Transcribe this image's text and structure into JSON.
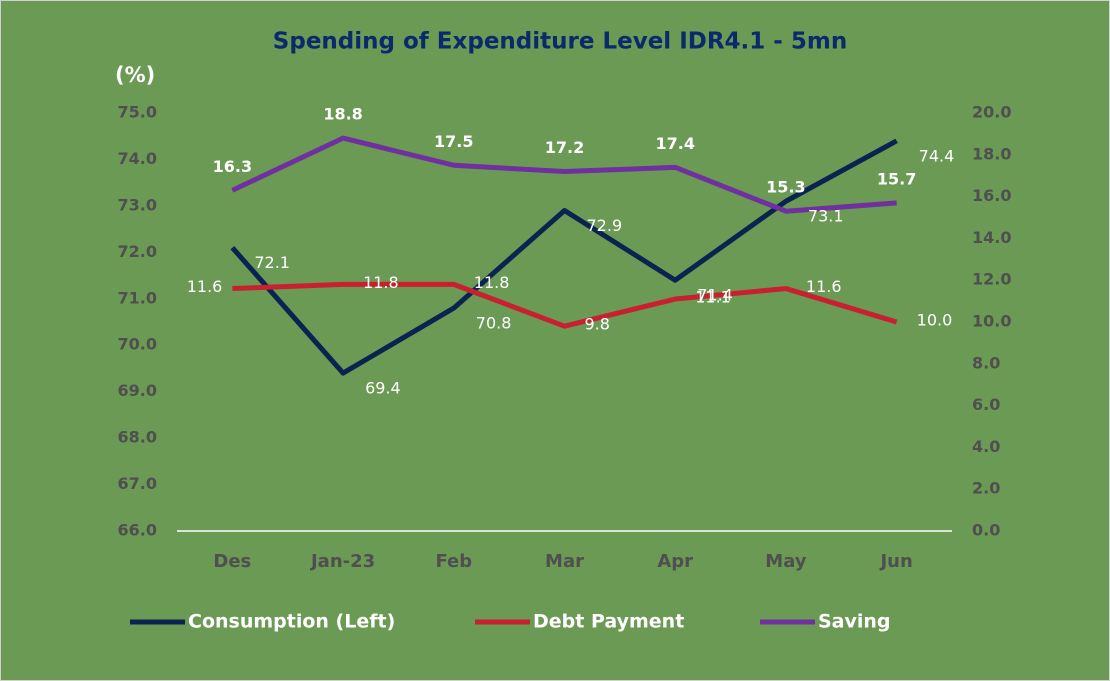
{
  "chart_data": {
    "type": "line",
    "title": "Spending of Expenditure Level IDR4.1 - 5mn",
    "y_label": "(%)",
    "categories": [
      "Des",
      "Jan-23",
      "Feb",
      "Mar",
      "Apr",
      "May",
      "Jun"
    ],
    "series": [
      {
        "name": "Consumption (Left)",
        "color": "#0b2350",
        "values": [
          72.1,
          69.4,
          70.8,
          72.9,
          71.4,
          73.1,
          74.4
        ],
        "value_labels": [
          "72.1",
          "69.4",
          "70.8",
          "72.9",
          "71.4",
          "73.1",
          "74.4"
        ]
      },
      {
        "name": "Debt Payment",
        "color": "#c8202f",
        "axis": "y2",
        "values": [
          11.6,
          11.8,
          11.8,
          9.8,
          11.1,
          11.6,
          10.0
        ],
        "value_labels": [
          "11.6",
          "11.8",
          "11.8",
          "9.8",
          "11.1",
          "11.6",
          "10.0"
        ]
      },
      {
        "name": "Saving",
        "color": "#7030a0",
        "axis": "y2",
        "values": [
          16.3,
          18.8,
          17.5,
          17.2,
          17.4,
          15.3,
          15.7
        ],
        "value_labels": [
          "16.3",
          "18.8",
          "17.5",
          "17.2",
          "17.4",
          "15.3",
          "15.7"
        ]
      }
    ],
    "ylim": [
      66,
      75
    ],
    "yticks": [
      {
        "value": 66,
        "label": "66.0"
      },
      {
        "value": 67,
        "label": "67.0"
      },
      {
        "value": 68,
        "label": "68.0"
      },
      {
        "value": 69,
        "label": "69.0"
      },
      {
        "value": 70,
        "label": "70.0"
      },
      {
        "value": 71,
        "label": "71.0"
      },
      {
        "value": 72,
        "label": "72.0"
      },
      {
        "value": 73,
        "label": "73.0"
      },
      {
        "value": 74,
        "label": "74.0"
      },
      {
        "value": 75,
        "label": "75.0"
      }
    ],
    "y2lim": [
      0,
      20
    ],
    "y2ticks": [
      {
        "value": 0,
        "label": "0.0"
      },
      {
        "value": 2,
        "label": "2.0"
      },
      {
        "value": 4,
        "label": "4.0"
      },
      {
        "value": 6,
        "label": "6.0"
      },
      {
        "value": 8,
        "label": "8.0"
      },
      {
        "value": 10,
        "label": "10.0"
      },
      {
        "value": 12,
        "label": "12.0"
      },
      {
        "value": 14,
        "label": "14.0"
      },
      {
        "value": 16,
        "label": "16.0"
      },
      {
        "value": 18,
        "label": "18.0"
      },
      {
        "value": 20,
        "label": "20.0"
      }
    ],
    "grid": false,
    "legend": "bottom"
  }
}
